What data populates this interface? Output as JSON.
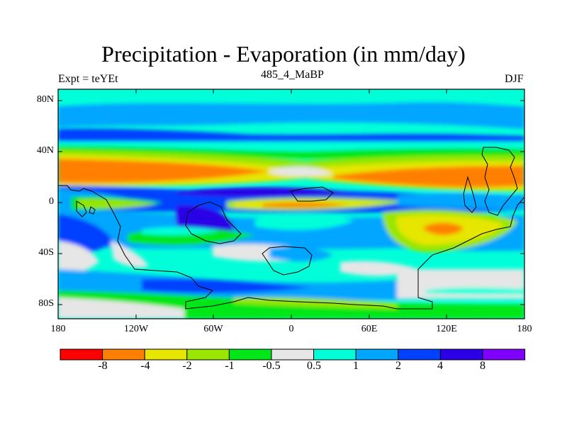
{
  "figure": {
    "title": "Precipitation - Evaporation (in mm/day)",
    "left_label": "Expt = teYEt",
    "center_label": "485_4_MaBP",
    "right_label": "DJF"
  },
  "map": {
    "projection": "cylindrical-equidistant",
    "lon_range": [
      -180,
      180
    ],
    "lat_range": [
      -90,
      90
    ],
    "x_ticks": [
      "180",
      "120W",
      "60W",
      "0",
      "60E",
      "120E",
      "180"
    ],
    "y_ticks": [
      "80N",
      "40N",
      "0",
      "40S",
      "80S"
    ],
    "field": "precipitation minus evaporation (mm/day), DJF",
    "continents_outline": true
  },
  "colorbar": {
    "levels": [
      "-8",
      "-4",
      "-2",
      "-1",
      "-0.5",
      "0.5",
      "1",
      "2",
      "4",
      "8"
    ],
    "colors": [
      "#ff0000",
      "#ff8000",
      "#e6e600",
      "#99e600",
      "#00e619",
      "#e6e6e6",
      "#00ffd9",
      "#00a6ff",
      "#0040ff",
      "#2b00e6",
      "#8000ff"
    ]
  }
}
